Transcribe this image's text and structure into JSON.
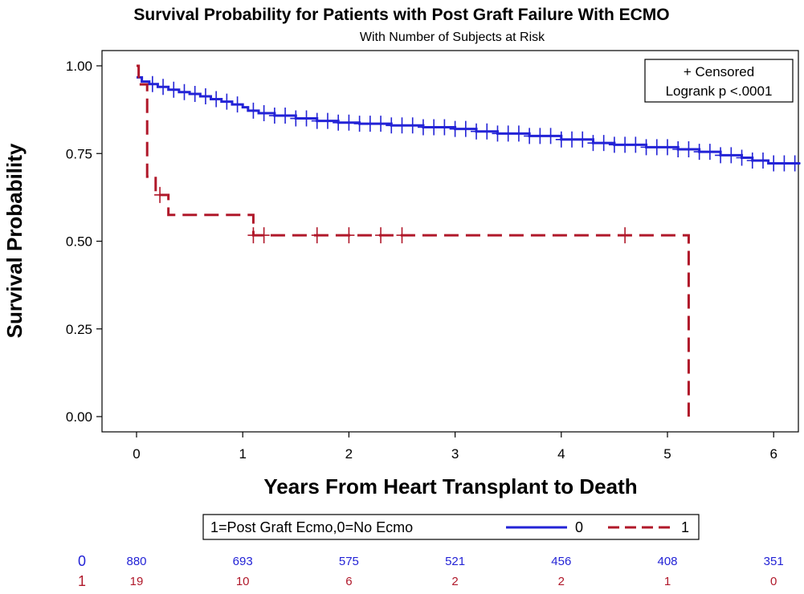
{
  "chart_data": {
    "type": "line",
    "title": "Survival Probability for Patients with Post Graft Failure With ECMO",
    "subtitle": "With Number of Subjects at Risk",
    "xlabel": "Years From Heart Transplant to Death",
    "ylabel": "Survival Probability",
    "xlim": [
      -0.3,
      6.25
    ],
    "ylim": [
      -0.05,
      1.05
    ],
    "xticks": [
      "0",
      "1",
      "2",
      "3",
      "4",
      "5",
      "6"
    ],
    "yticks": [
      "0.00",
      "0.25",
      "0.50",
      "0.75",
      "1.00"
    ],
    "inset": {
      "censored": "+ Censored",
      "logrank": "Logrank p <.0001"
    },
    "legend": {
      "title": "1=Post Graft Ecmo,0=No Ecmo",
      "position": "bottom",
      "entries": [
        "0",
        "1"
      ]
    },
    "series": [
      {
        "name": "0",
        "color": "#2323d6",
        "style": "solid",
        "steps": [
          [
            0,
            0.967
          ],
          [
            0.05,
            0.955
          ],
          [
            0.12,
            0.948
          ],
          [
            0.2,
            0.94
          ],
          [
            0.3,
            0.932
          ],
          [
            0.4,
            0.925
          ],
          [
            0.5,
            0.92
          ],
          [
            0.6,
            0.913
          ],
          [
            0.7,
            0.905
          ],
          [
            0.8,
            0.898
          ],
          [
            0.9,
            0.89
          ],
          [
            1.0,
            0.882
          ],
          [
            1.05,
            0.872
          ],
          [
            1.15,
            0.865
          ],
          [
            1.3,
            0.858
          ],
          [
            1.5,
            0.85
          ],
          [
            1.7,
            0.843
          ],
          [
            1.9,
            0.838
          ],
          [
            2.1,
            0.835
          ],
          [
            2.4,
            0.83
          ],
          [
            2.7,
            0.825
          ],
          [
            3.0,
            0.82
          ],
          [
            3.2,
            0.813
          ],
          [
            3.4,
            0.807
          ],
          [
            3.7,
            0.8
          ],
          [
            4.0,
            0.79
          ],
          [
            4.3,
            0.78
          ],
          [
            4.5,
            0.775
          ],
          [
            4.8,
            0.768
          ],
          [
            5.1,
            0.762
          ],
          [
            5.3,
            0.755
          ],
          [
            5.5,
            0.745
          ],
          [
            5.7,
            0.738
          ],
          [
            5.8,
            0.73
          ],
          [
            5.95,
            0.722
          ],
          [
            6.25,
            0.722
          ]
        ],
        "censored_x": [
          0.15,
          0.25,
          0.35,
          0.45,
          0.55,
          0.65,
          0.75,
          0.85,
          0.95,
          1.1,
          1.2,
          1.3,
          1.4,
          1.5,
          1.6,
          1.7,
          1.8,
          1.9,
          2.0,
          2.1,
          2.2,
          2.3,
          2.4,
          2.5,
          2.6,
          2.7,
          2.8,
          2.9,
          3.0,
          3.1,
          3.2,
          3.3,
          3.4,
          3.5,
          3.6,
          3.7,
          3.8,
          3.9,
          4.0,
          4.1,
          4.2,
          4.3,
          4.4,
          4.5,
          4.6,
          4.7,
          4.8,
          4.9,
          5.0,
          5.1,
          5.2,
          5.3,
          5.4,
          5.5,
          5.6,
          5.7,
          5.8,
          5.9,
          6.0,
          6.1,
          6.2
        ]
      },
      {
        "name": "1",
        "color": "#b0182a",
        "style": "dashed",
        "steps": [
          [
            0,
            1.0
          ],
          [
            0.02,
            0.947
          ],
          [
            0.1,
            0.684
          ],
          [
            0.18,
            0.632
          ],
          [
            0.3,
            0.575
          ],
          [
            1.1,
            0.517
          ],
          [
            5.2,
            0.0
          ]
        ],
        "censored_x": [
          0.22,
          1.1,
          1.2,
          1.7,
          2.0,
          2.3,
          2.5,
          4.6
        ]
      }
    ],
    "at_risk": {
      "times": [
        0,
        1,
        2,
        3,
        4,
        5,
        6
      ],
      "rows": [
        {
          "label": "0",
          "color": "#2323d6",
          "values": [
            "880",
            "693",
            "575",
            "521",
            "456",
            "408",
            "351"
          ]
        },
        {
          "label": "1",
          "color": "#b0182a",
          "values": [
            "19",
            "10",
            "6",
            "2",
            "2",
            "1",
            "0"
          ]
        }
      ]
    }
  }
}
